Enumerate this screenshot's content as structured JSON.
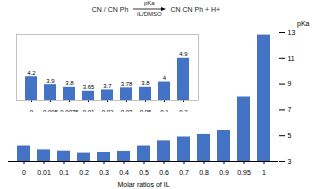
{
  "chart_data": [
    {
      "type": "bar",
      "categories": [
        "0",
        "0.01",
        "0.1",
        "0.2",
        "0.3",
        "0.4",
        "0.5",
        "0.6",
        "0.7",
        "0.8",
        "0.9",
        "0.95",
        "1"
      ],
      "values": [
        4.2,
        3.9,
        3.8,
        3.65,
        3.7,
        3.78,
        4.2,
        4.6,
        4.9,
        5.1,
        5.4,
        8.0,
        12.8
      ],
      "color": "#4472C4",
      "xlabel": "Molar ratios of IL",
      "ylabel": "pKa",
      "ylim": [
        3,
        13
      ],
      "yticks": [
        3,
        5,
        7,
        9,
        11,
        13
      ],
      "annotations": [
        "CN",
        "/",
        "CN",
        "Ph",
        "pKa",
        "IL/DMSO",
        "CN",
        "CN",
        "Ph",
        "+",
        "H+"
      ]
    },
    {
      "type": "bar",
      "categories": [
        "0",
        "0.005",
        "0.0075",
        "0.01",
        "0.02",
        "0.03",
        "0.05",
        "0.1",
        "0.2"
      ],
      "values": [
        4.2,
        3.9,
        3.8,
        3.65,
        3.7,
        3.78,
        3.8,
        4.0,
        4.9
      ],
      "color": "#4472C4",
      "ylim": [
        3.3,
        5.8
      ],
      "data_labels": true,
      "tick_labels": "x"
    }
  ]
}
